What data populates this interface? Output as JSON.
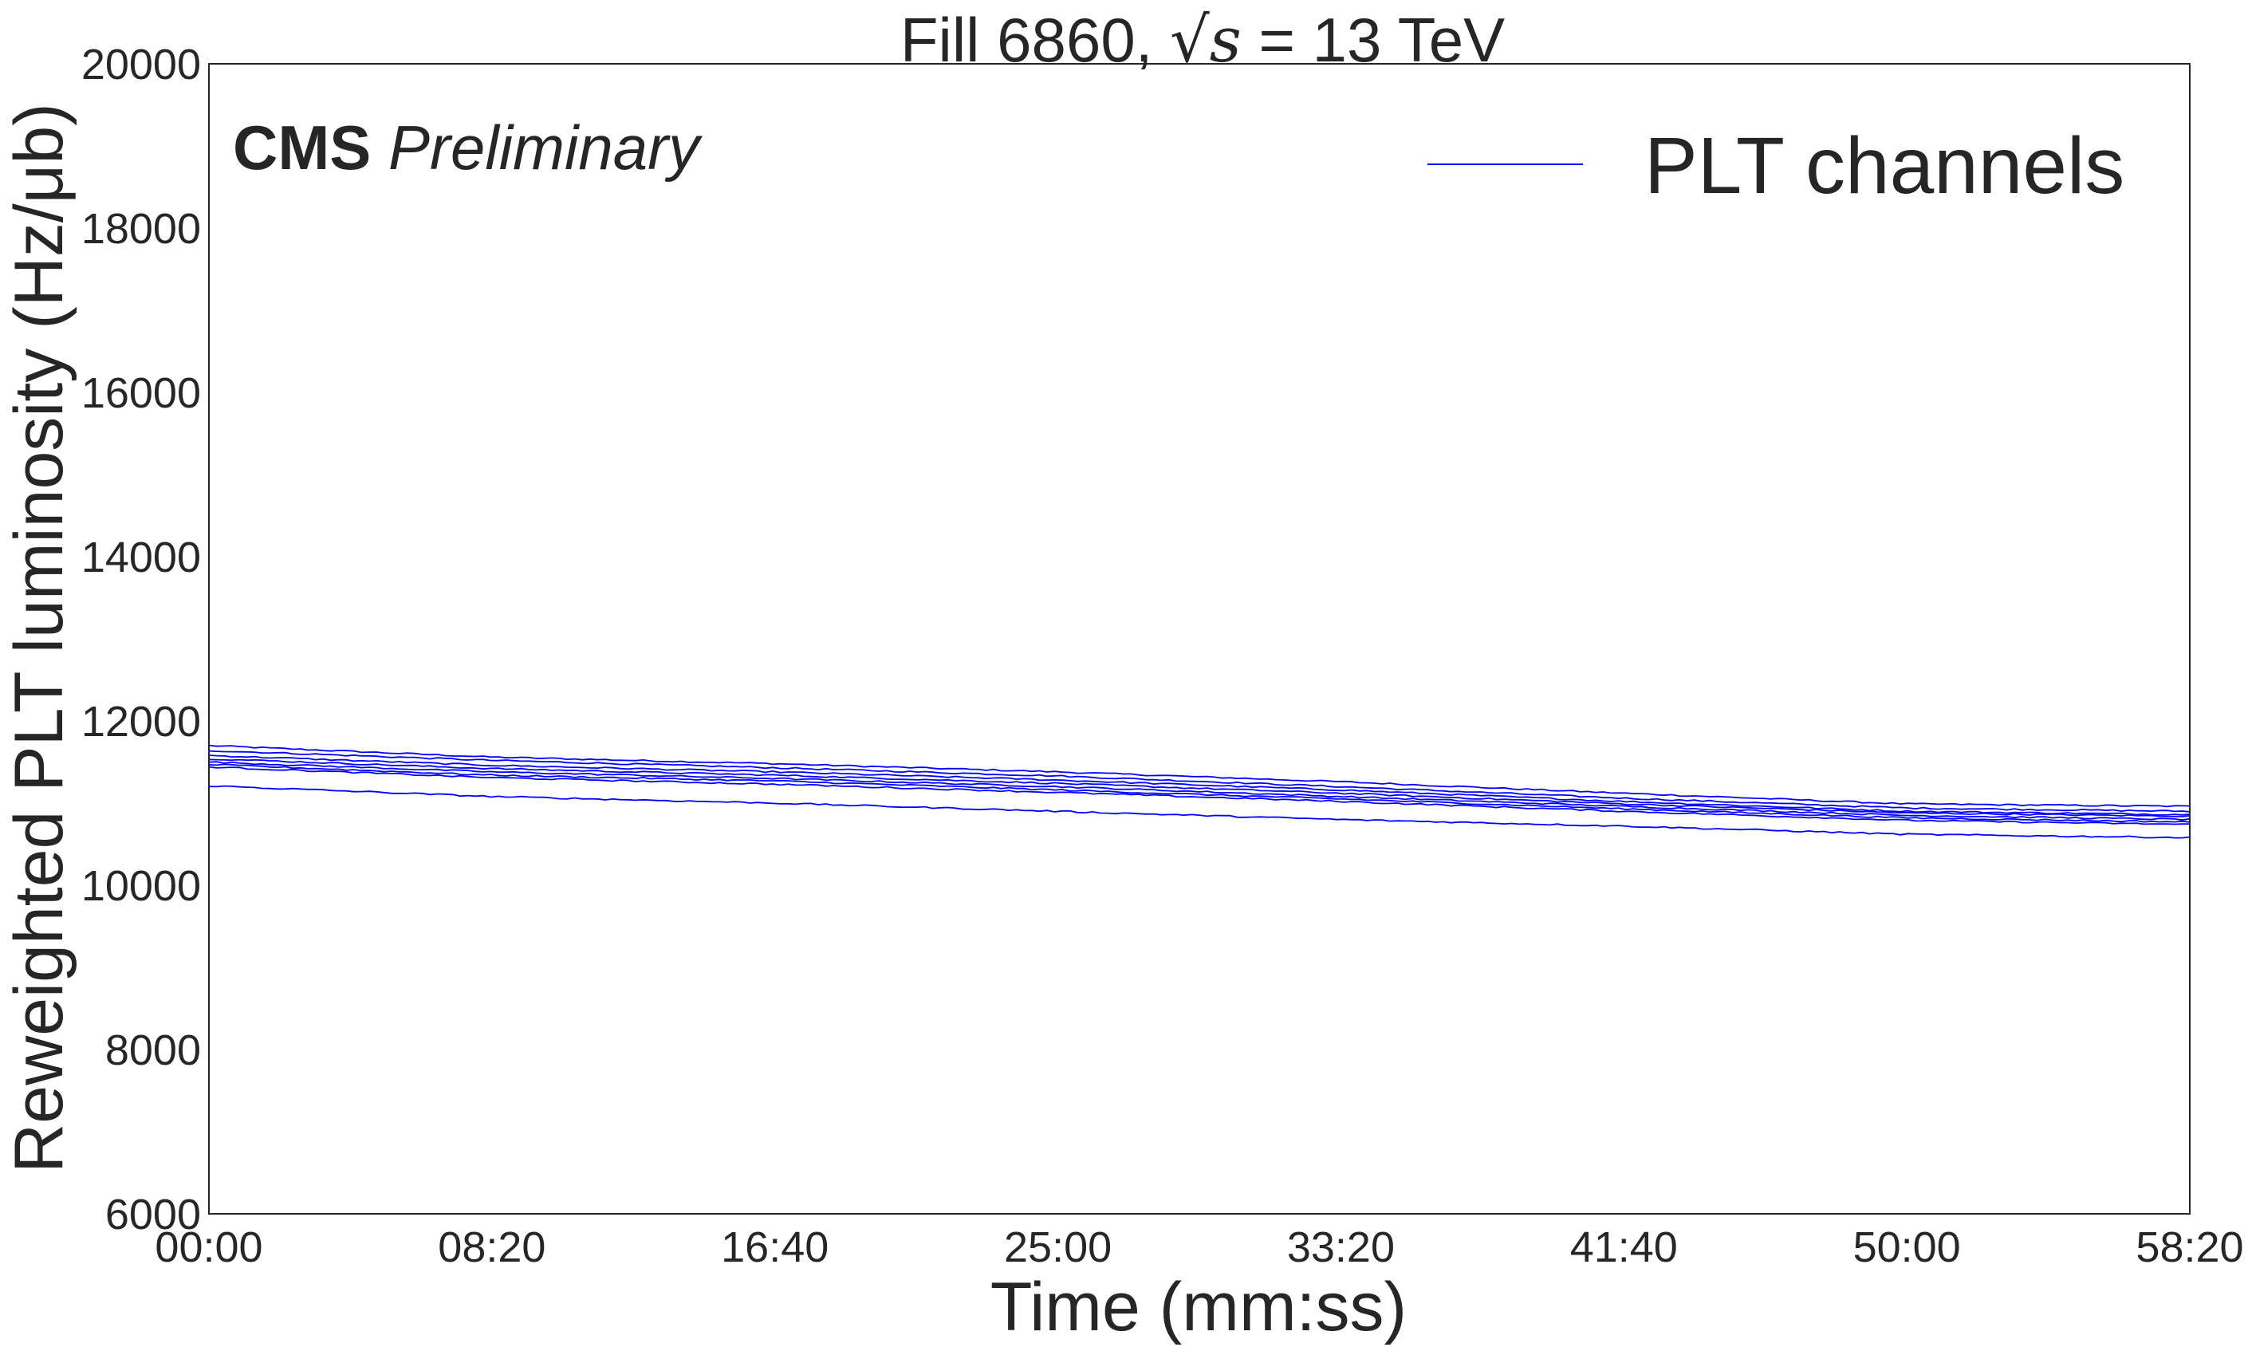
{
  "chart_data": {
    "type": "line",
    "title_prefix": "Fill 6860, ",
    "title_math": "√s",
    "title_suffix": " = 13 TeV",
    "annotation_bold": "CMS",
    "annotation_italic": "Preliminary",
    "xlabel": "Time (mm:ss)",
    "ylabel": "Reweighted PLT luminosity (Hz/μb)",
    "legend": {
      "label": "PLT channels",
      "placement": "top-right"
    },
    "x_unit": "seconds",
    "xlim": [
      0,
      3500
    ],
    "ylim": [
      6000,
      20000
    ],
    "x_ticks": [
      0,
      500,
      1000,
      1500,
      2000,
      2500,
      3000,
      3500
    ],
    "x_tick_labels": [
      "00:00",
      "08:20",
      "16:40",
      "25:00",
      "33:20",
      "41:40",
      "50:00",
      "58:20"
    ],
    "y_ticks": [
      6000,
      8000,
      10000,
      12000,
      14000,
      16000,
      18000,
      20000
    ],
    "y_tick_labels": [
      "6000",
      "8000",
      "10000",
      "12000",
      "14000",
      "16000",
      "18000",
      "20000"
    ],
    "grid": false,
    "line_color": "#0000ff",
    "x": [
      0,
      500,
      1000,
      1500,
      2000,
      2500,
      3000,
      3500
    ],
    "series": [
      {
        "values": [
          11700,
          11560,
          11480,
          11380,
          11260,
          11120,
          10990,
          10960
        ]
      },
      {
        "values": [
          11640,
          11520,
          11430,
          11330,
          11200,
          11060,
          10940,
          10900
        ]
      },
      {
        "values": [
          11580,
          11460,
          11380,
          11280,
          11160,
          11020,
          10900,
          10860
        ]
      },
      {
        "values": [
          11540,
          11420,
          11340,
          11240,
          11120,
          10990,
          10880,
          10840
        ]
      },
      {
        "values": [
          11500,
          11380,
          11300,
          11200,
          11080,
          10960,
          10850,
          10800
        ]
      },
      {
        "values": [
          11470,
          11340,
          11270,
          11160,
          11050,
          10930,
          10820,
          10770
        ]
      },
      {
        "values": [
          11440,
          11310,
          11230,
          11130,
          11020,
          10900,
          10790,
          10740
        ]
      },
      {
        "values": [
          11210,
          11080,
          11000,
          10900,
          10800,
          10720,
          10620,
          10580
        ]
      }
    ]
  }
}
